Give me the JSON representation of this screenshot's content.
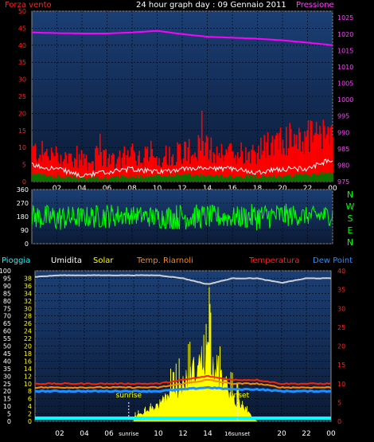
{
  "header": {
    "title": "24 hour graph day : 09 Gennaio 2011",
    "left_label": "Forza vento",
    "right_label": "Pressione"
  },
  "direction_labels": [
    "N",
    "W",
    "S",
    "E",
    "N"
  ],
  "legend": {
    "rain": "Pioggia",
    "humidity": "Umidita",
    "solar": "Solar",
    "indoor_temp": "Temp. Riarnoli",
    "temperature": "Temperatura",
    "dew_point": "Dew Point"
  },
  "markers": {
    "sunrise": "sunrise",
    "sunset": "sunset"
  },
  "colors": {
    "wind": "#ff0000",
    "wind_dark": "#b00000",
    "gust": "#ffffff",
    "avg": "#007700",
    "pressure": "#ff00ff",
    "direction": "#00ff00",
    "humidity": "#c8c8c8",
    "solar": "#ffff00",
    "temperature": "#ff2200",
    "indoor": "#ff8800",
    "dew": "#1e90ff",
    "rain": "#00ffff",
    "plot_top": "#1a3a6a",
    "plot_bottom": "#0a1830"
  },
  "chart_data": [
    {
      "type": "line",
      "name": "wind-pressure",
      "x_tick_labels": [
        "02",
        "04",
        "06",
        "08",
        "10",
        "12",
        "14",
        "16",
        "18",
        "20",
        "22",
        "00"
      ],
      "y_left_ticks": [
        0,
        5,
        10,
        15,
        20,
        25,
        30,
        35,
        40,
        45,
        50
      ],
      "y_right_ticks": [
        975,
        980,
        985,
        990,
        995,
        1000,
        1005,
        1010,
        1015,
        1020,
        1025
      ],
      "ylim_left": [
        0,
        50
      ],
      "ylim_right": [
        975,
        1027
      ],
      "x_hours": [
        0,
        2,
        4,
        6,
        8,
        10,
        12,
        14,
        16,
        18,
        20,
        22,
        24
      ],
      "pressure": [
        1020.5,
        1020.3,
        1020.2,
        1020.2,
        1020.5,
        1021.0,
        1020.0,
        1019.2,
        1018.9,
        1018.6,
        1018.1,
        1017.4,
        1016.6
      ],
      "wind_peak": [
        13,
        11,
        10,
        11,
        12,
        10,
        13,
        14,
        12,
        13,
        17,
        19,
        17
      ],
      "wind_base": [
        5,
        4,
        3,
        3,
        4,
        4,
        5,
        5,
        5,
        5,
        7,
        8,
        9
      ],
      "gust": [
        4,
        3,
        1,
        2,
        3,
        2,
        3,
        3,
        3,
        2,
        3,
        3,
        6
      ],
      "avg": [
        1.5,
        1,
        0.5,
        0.5,
        1,
        1,
        1.5,
        1,
        1,
        1,
        1,
        1.5,
        2
      ]
    },
    {
      "type": "line",
      "name": "wind-direction",
      "y_ticks": [
        0,
        90,
        180,
        270,
        360
      ],
      "ylim": [
        0,
        360
      ],
      "x_tick_labels": [
        "02",
        "04",
        "06",
        "08",
        "10",
        "12",
        "14",
        "16",
        "18",
        "20",
        "22",
        "00"
      ],
      "center": [
        180,
        170,
        175,
        185,
        190,
        175,
        180,
        180,
        175,
        180,
        190,
        185,
        190
      ],
      "spread": [
        80,
        90,
        70,
        85,
        60,
        75,
        90,
        80,
        70,
        90,
        80,
        60,
        70
      ]
    },
    {
      "type": "line",
      "name": "humidity-temperature-solar",
      "y_left_ticks": [
        0,
        5,
        10,
        15,
        20,
        25,
        30,
        35,
        40,
        45,
        50,
        55,
        60,
        65,
        70,
        75,
        80,
        85,
        90,
        95,
        100
      ],
      "y_mid_ticks": [
        0,
        2,
        4,
        6,
        8,
        10,
        12,
        14,
        16,
        18,
        20,
        22,
        24,
        26,
        28,
        30,
        32,
        34,
        36,
        38
      ],
      "y_right_ticks": [
        0,
        5,
        10,
        15,
        20,
        25,
        30,
        35,
        40
      ],
      "ylim_left": [
        0,
        100
      ],
      "ylim_right": [
        0,
        40
      ],
      "x_tick_labels": [
        "02",
        "04",
        "06",
        "sunrise",
        "10",
        "12",
        "14",
        "16sunset",
        "20",
        "22",
        "00"
      ],
      "x_hours": [
        0,
        2,
        4,
        6,
        8,
        10,
        12,
        14,
        16,
        18,
        20,
        22,
        24
      ],
      "humidity": [
        96,
        97,
        97,
        97,
        97,
        97,
        95,
        91,
        95,
        95,
        92,
        95,
        95
      ],
      "temperature": [
        10,
        10,
        10,
        10,
        10,
        10,
        11,
        12,
        11,
        11,
        10,
        10,
        10
      ],
      "indoor": [
        9,
        9,
        9,
        9,
        9,
        9,
        10,
        11,
        10,
        10,
        9,
        9,
        9
      ],
      "dew_point": [
        8,
        8,
        8,
        8,
        8,
        8,
        8.5,
        9,
        8.5,
        8.5,
        8,
        8,
        8
      ],
      "solar_peak": [
        0,
        0,
        0,
        0,
        5,
        20,
        45,
        85,
        30,
        0,
        0,
        0,
        0
      ],
      "rain": [
        0,
        0,
        0,
        0,
        0,
        0,
        0,
        0,
        0,
        0,
        0,
        0,
        0
      ]
    }
  ]
}
